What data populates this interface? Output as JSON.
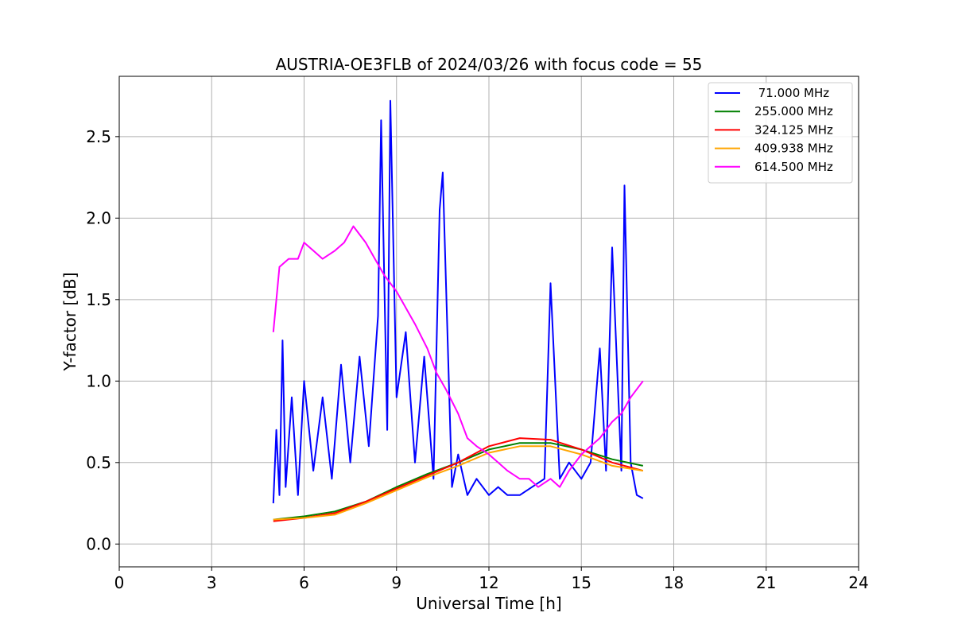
{
  "chart_data": {
    "type": "line",
    "title": "AUSTRIA-OE3FLB of 2024/03/26 with focus code = 55",
    "xlabel": "Universal Time [h]",
    "ylabel": "Y-factor [dB]",
    "xlim": [
      0,
      24
    ],
    "ylim": [
      -0.14,
      2.87
    ],
    "xticks": [
      0,
      3,
      6,
      9,
      12,
      15,
      18,
      21,
      24
    ],
    "yticks": [
      0.0,
      0.5,
      1.0,
      1.5,
      2.0,
      2.5
    ],
    "ytick_labels": [
      "0.0",
      "0.5",
      "1.0",
      "1.5",
      "2.0",
      "2.5"
    ],
    "grid": true,
    "legend_position": "top-right",
    "series": [
      {
        "name": " 71.000 MHz",
        "color": "#0000ff",
        "x": [
          5.0,
          5.1,
          5.2,
          5.3,
          5.4,
          5.6,
          5.8,
          6.0,
          6.3,
          6.6,
          6.9,
          7.2,
          7.5,
          7.8,
          8.1,
          8.4,
          8.5,
          8.7,
          8.8,
          9.0,
          9.3,
          9.6,
          9.9,
          10.2,
          10.4,
          10.5,
          10.8,
          11.0,
          11.3,
          11.6,
          12.0,
          12.3,
          12.6,
          13.0,
          13.4,
          13.8,
          14.0,
          14.3,
          14.6,
          15.0,
          15.3,
          15.6,
          15.8,
          16.0,
          16.3,
          16.4,
          16.6,
          16.8,
          17.0
        ],
        "y": [
          0.25,
          0.7,
          0.3,
          1.25,
          0.35,
          0.9,
          0.3,
          1.0,
          0.45,
          0.9,
          0.4,
          1.1,
          0.5,
          1.15,
          0.6,
          1.4,
          2.6,
          0.7,
          2.72,
          0.9,
          1.3,
          0.5,
          1.15,
          0.4,
          2.05,
          2.28,
          0.35,
          0.55,
          0.3,
          0.4,
          0.3,
          0.35,
          0.3,
          0.3,
          0.35,
          0.4,
          1.6,
          0.4,
          0.5,
          0.4,
          0.5,
          1.2,
          0.45,
          1.82,
          0.45,
          2.2,
          0.5,
          0.3,
          0.28
        ]
      },
      {
        "name": "255.000 MHz",
        "color": "#008000",
        "x": [
          5.0,
          6.0,
          7.0,
          8.0,
          9.0,
          10.0,
          11.0,
          12.0,
          13.0,
          14.0,
          15.0,
          16.0,
          17.0
        ],
        "y": [
          0.15,
          0.17,
          0.2,
          0.26,
          0.35,
          0.43,
          0.5,
          0.58,
          0.62,
          0.62,
          0.58,
          0.52,
          0.48
        ]
      },
      {
        "name": "324.125 MHz",
        "color": "#ff0000",
        "x": [
          5.0,
          6.0,
          7.0,
          8.0,
          9.0,
          10.0,
          11.0,
          12.0,
          13.0,
          14.0,
          15.0,
          16.0,
          17.0
        ],
        "y": [
          0.14,
          0.16,
          0.19,
          0.26,
          0.34,
          0.42,
          0.5,
          0.6,
          0.65,
          0.64,
          0.58,
          0.5,
          0.45
        ]
      },
      {
        "name": "409.938 MHz",
        "color": "#ffa500",
        "x": [
          5.0,
          6.0,
          7.0,
          8.0,
          9.0,
          10.0,
          11.0,
          12.0,
          13.0,
          14.0,
          15.0,
          16.0,
          17.0
        ],
        "y": [
          0.15,
          0.16,
          0.18,
          0.25,
          0.33,
          0.41,
          0.48,
          0.56,
          0.6,
          0.6,
          0.55,
          0.48,
          0.45
        ]
      },
      {
        "name": "614.500 MHz",
        "color": "#ff00ff",
        "x": [
          5.0,
          5.2,
          5.5,
          5.8,
          6.0,
          6.3,
          6.6,
          7.0,
          7.3,
          7.6,
          8.0,
          8.3,
          8.6,
          9.0,
          9.3,
          9.6,
          10.0,
          10.3,
          10.6,
          11.0,
          11.3,
          11.6,
          12.0,
          12.3,
          12.6,
          13.0,
          13.3,
          13.6,
          14.0,
          14.3,
          14.6,
          15.0,
          15.3,
          15.6,
          16.0,
          16.3,
          16.6,
          17.0
        ],
        "y": [
          1.3,
          1.7,
          1.75,
          1.75,
          1.85,
          1.8,
          1.75,
          1.8,
          1.85,
          1.95,
          1.85,
          1.75,
          1.65,
          1.55,
          1.45,
          1.35,
          1.2,
          1.05,
          0.95,
          0.8,
          0.65,
          0.6,
          0.55,
          0.5,
          0.45,
          0.4,
          0.4,
          0.35,
          0.4,
          0.35,
          0.45,
          0.55,
          0.6,
          0.65,
          0.75,
          0.8,
          0.9,
          1.0
        ]
      }
    ]
  }
}
